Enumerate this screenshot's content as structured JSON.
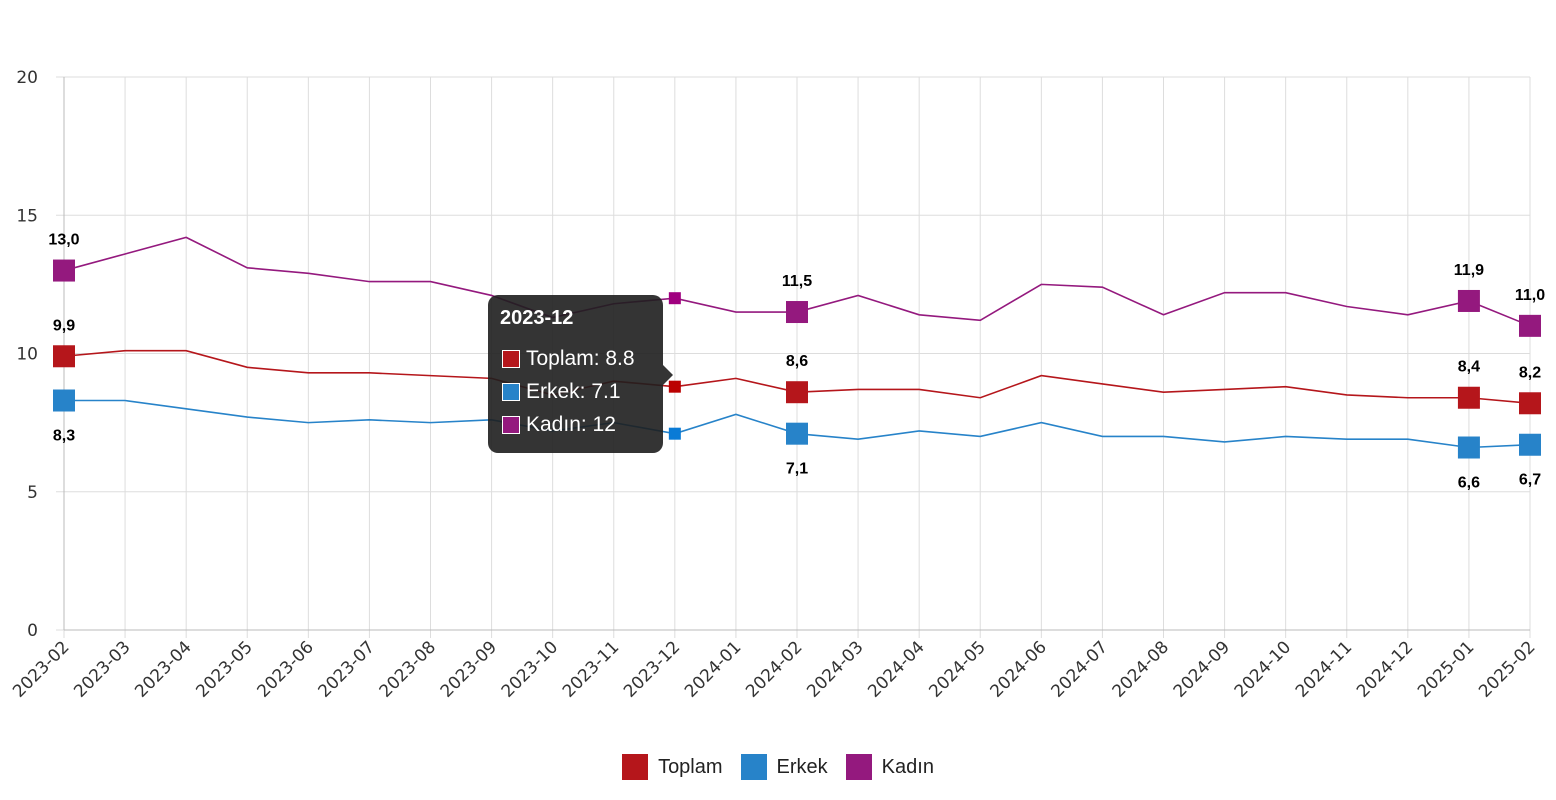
{
  "chart_data": {
    "type": "line",
    "x": [
      "2023-02",
      "2023-03",
      "2023-04",
      "2023-05",
      "2023-06",
      "2023-07",
      "2023-08",
      "2023-09",
      "2023-10",
      "2023-11",
      "2023-12",
      "2024-01",
      "2024-02",
      "2024-03",
      "2024-04",
      "2024-05",
      "2024-06",
      "2024-07",
      "2024-08",
      "2024-09",
      "2024-10",
      "2024-11",
      "2024-12",
      "2025-01",
      "2025-02"
    ],
    "ylim": [
      0,
      20
    ],
    "yticks": [
      0,
      5,
      10,
      15,
      20
    ],
    "grid": true,
    "legend_placement": "bottom",
    "series": [
      {
        "name": "Toplam",
        "color": "#b5161b",
        "values": [
          9.9,
          10.1,
          10.1,
          9.5,
          9.3,
          9.3,
          9.2,
          9.1,
          8.5,
          9.0,
          8.8,
          9.1,
          8.6,
          8.7,
          8.7,
          8.4,
          9.2,
          8.9,
          8.6,
          8.7,
          8.8,
          8.5,
          8.4,
          8.4,
          8.2
        ],
        "label_pos": "above"
      },
      {
        "name": "Erkek",
        "color": "#2783c9",
        "values": [
          8.3,
          8.3,
          8.0,
          7.7,
          7.5,
          7.6,
          7.5,
          7.6,
          7.2,
          7.5,
          7.1,
          7.8,
          7.1,
          6.9,
          7.2,
          7.0,
          7.5,
          7.0,
          7.0,
          6.8,
          7.0,
          6.9,
          6.9,
          6.6,
          6.7
        ],
        "label_pos": "below"
      },
      {
        "name": "Kadın",
        "color": "#94197e",
        "values": [
          13.0,
          13.6,
          14.2,
          13.1,
          12.9,
          12.6,
          12.6,
          12.1,
          11.3,
          11.8,
          12.0,
          11.5,
          11.5,
          12.1,
          11.4,
          11.2,
          12.5,
          12.4,
          11.4,
          12.2,
          12.2,
          11.7,
          11.4,
          11.9,
          11.0
        ],
        "label_pos": "above"
      }
    ],
    "labeled_indices": [
      0,
      12,
      23,
      24
    ],
    "data_labels": {
      "Toplam": [
        "9,9",
        "8,6",
        "8,4",
        "8,2"
      ],
      "Erkek": [
        "8,3",
        "7,1",
        "6,6",
        "6,7"
      ],
      "Kadın": [
        "13,0",
        "11,5",
        "11,9",
        "11,0"
      ]
    },
    "highlighted_index": 10
  },
  "tooltip": {
    "title": "2023-12",
    "rows": [
      {
        "text": "Toplam: 8.8",
        "color": "#b5161b"
      },
      {
        "text": "Erkek: 7.1",
        "color": "#2783c9"
      },
      {
        "text": "Kadın: 12",
        "color": "#94197e"
      }
    ]
  },
  "legend": [
    {
      "label": "Toplam",
      "color": "#b5161b"
    },
    {
      "label": "Erkek",
      "color": "#2783c9"
    },
    {
      "label": "Kadın",
      "color": "#94197e"
    }
  ]
}
